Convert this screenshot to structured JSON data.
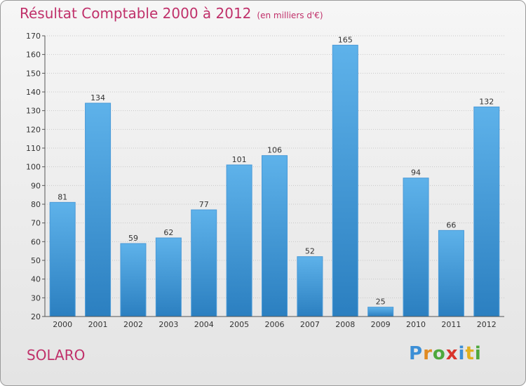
{
  "header": {
    "title": "Résultat Comptable 2000 à 2012",
    "subtitle": "(en milliers d'€)"
  },
  "footer": {
    "commune": "SOLARO",
    "logo": "Proxiti",
    "logo_colors": [
      "#3c8fd6",
      "#e08a22",
      "#4ea83c",
      "#d9342b",
      "#3c8fd6",
      "#e0b020",
      "#4ea83c"
    ]
  },
  "colors": {
    "bar_top": "#5eb2ea",
    "bar_bottom": "#2b7fc0",
    "title": "#c0306a"
  },
  "chart_data": {
    "type": "bar",
    "title": "Résultat Comptable 2000 à 2012",
    "subtitle": "(en milliers d'€)",
    "categories": [
      "2000",
      "2001",
      "2002",
      "2003",
      "2004",
      "2005",
      "2006",
      "2007",
      "2008",
      "2009",
      "2010",
      "2011",
      "2012"
    ],
    "values": [
      81,
      134,
      59,
      62,
      77,
      101,
      106,
      52,
      165,
      25,
      94,
      66,
      132
    ],
    "ylim": [
      20,
      170
    ],
    "yticks": [
      20,
      30,
      40,
      50,
      60,
      70,
      80,
      90,
      100,
      110,
      120,
      130,
      140,
      150,
      160,
      170
    ],
    "grid": true,
    "legend": "none"
  }
}
